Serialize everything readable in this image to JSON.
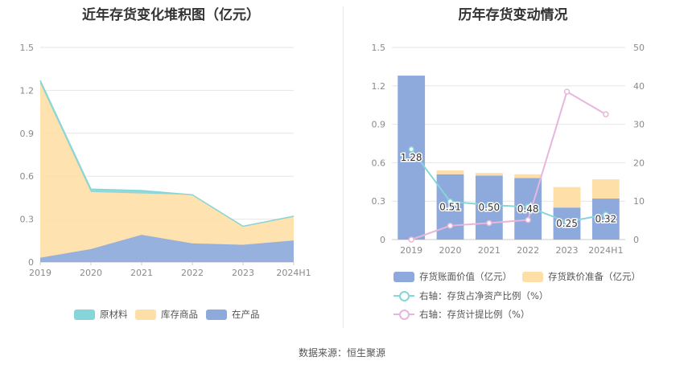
{
  "titles": {
    "left": "近年存货变化堆积图（亿元）",
    "right": "历年存货变动情况"
  },
  "source": "数据来源：恒生聚源",
  "chart_data": [
    {
      "type": "area",
      "stacked": true,
      "title": "近年存货变化堆积图（亿元）",
      "categories": [
        "2019",
        "2020",
        "2021",
        "2022",
        "2023",
        "2024H1"
      ],
      "ylim": [
        0,
        1.5
      ],
      "yticks": [
        "0",
        "0.3",
        "0.6",
        "0.9",
        "1.2",
        "1.5"
      ],
      "series": [
        {
          "name": "在产品",
          "color": "#8eaadc",
          "values": [
            0.03,
            0.09,
            0.19,
            0.13,
            0.12,
            0.15
          ]
        },
        {
          "name": "库存商品",
          "color": "#fedfa8",
          "values": [
            1.22,
            0.4,
            0.29,
            0.34,
            0.13,
            0.17
          ]
        },
        {
          "name": "原材料",
          "color": "#86d5d8",
          "values": [
            0.02,
            0.02,
            0.02,
            0.0,
            0.0,
            0.0
          ]
        }
      ],
      "legend_order": [
        "原材料",
        "库存商品",
        "在产品"
      ],
      "legend_position": "bottom",
      "grid": true
    },
    {
      "type": "bar",
      "title": "历年存货变动情况",
      "categories": [
        "2019",
        "2020",
        "2021",
        "2022",
        "2023",
        "2024H1"
      ],
      "ylim": [
        0,
        1.5
      ],
      "yticks": [
        "0",
        "0.3",
        "0.6",
        "0.9",
        "1.2",
        "1.5"
      ],
      "y2lim": [
        0,
        50
      ],
      "y2ticks": [
        "0",
        "10",
        "20",
        "30",
        "40",
        "50"
      ],
      "bars": [
        {
          "name": "存货账面价值（亿元）",
          "color": "#8eaadc",
          "values": [
            1.28,
            0.51,
            0.5,
            0.48,
            0.25,
            0.32
          ],
          "labels": [
            "1.28",
            "0.51",
            "0.50",
            "0.48",
            "0.25",
            "0.32"
          ]
        },
        {
          "name": "存货跌价准备（亿元）",
          "color": "#fedfa8",
          "values": [
            0.0,
            0.03,
            0.02,
            0.03,
            0.16,
            0.15
          ]
        }
      ],
      "lines": [
        {
          "name": "右轴：存货占净资产比例（%）",
          "color": "#86d5d8",
          "axis": "right",
          "values": [
            23.5,
            9.9,
            9.0,
            8.5,
            4.6,
            6.5
          ]
        },
        {
          "name": "右轴：存货计提比例（%）",
          "color": "#e8b6dc",
          "axis": "right",
          "values": [
            0.0,
            3.6,
            4.3,
            5.1,
            38.5,
            32.6
          ]
        }
      ],
      "legend_position": "bottom",
      "grid": true
    }
  ]
}
